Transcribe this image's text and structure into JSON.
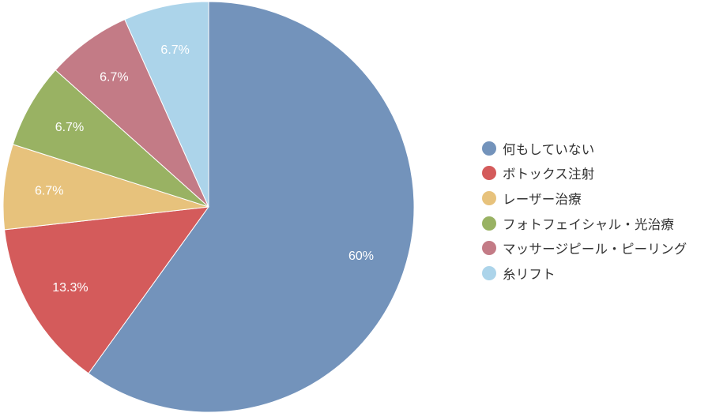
{
  "chart_data": {
    "type": "pie",
    "start_angle_deg": 0,
    "direction": "clockwise",
    "legend_position": "right",
    "slices": [
      {
        "label": "何もしていない",
        "value": 60,
        "display": "60%",
        "color": "#7393bb"
      },
      {
        "label": "ボトックス注射",
        "value": 13.3,
        "display": "13.3%",
        "color": "#d45b5b"
      },
      {
        "label": "レーザー治療",
        "value": 6.7,
        "display": "6.7%",
        "color": "#e7c27c"
      },
      {
        "label": "フォトフェイシャル・光治療",
        "value": 6.7,
        "display": "6.7%",
        "color": "#99b263"
      },
      {
        "label": "マッサージピール・ピーリング",
        "value": 6.7,
        "display": "6.7%",
        "color": "#c37b86"
      },
      {
        "label": "糸リフト",
        "value": 6.7,
        "display": "6.7%",
        "color": "#acd4ea"
      }
    ]
  }
}
